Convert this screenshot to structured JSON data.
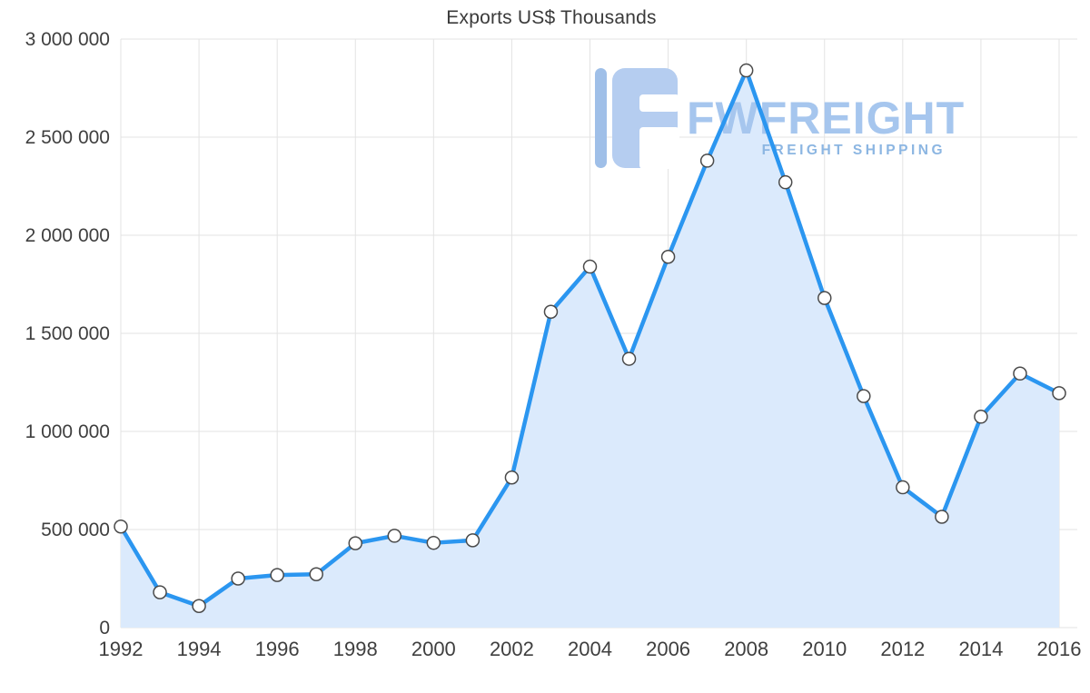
{
  "title": "Exports US$ Thousands",
  "watermark": {
    "brand": "FWFREIGHT",
    "tagline": "FREIGHT SHIPPING"
  },
  "colors": {
    "line": "#2b96f0",
    "area": "#dbeafc",
    "marker_fill": "#ffffff",
    "marker_stroke": "#4a4a4a",
    "grid": "#e3e3e3",
    "axis_text": "#3f3f3f",
    "title_text": "#3a3a3a",
    "logo_bar": "#9fbfe8",
    "logo_block": "#b5cdf0",
    "brand_text": "#a6c6ee",
    "tagline_text": "#8cb6e2"
  },
  "chart_data": {
    "type": "line",
    "title": "Exports US$ Thousands",
    "x": [
      1992,
      1993,
      1994,
      1995,
      1996,
      1997,
      1998,
      1999,
      2000,
      2001,
      2002,
      2003,
      2004,
      2005,
      2006,
      2007,
      2008,
      2009,
      2010,
      2011,
      2012,
      2013,
      2014,
      2015,
      2016
    ],
    "values": [
      515000,
      180000,
      110000,
      250000,
      268000,
      272000,
      430000,
      468000,
      432000,
      445000,
      765000,
      1610000,
      1840000,
      1370000,
      1890000,
      2380000,
      2840000,
      2270000,
      1680000,
      1180000,
      715000,
      565000,
      1075000,
      1295000,
      1195000
    ],
    "ylim": [
      0,
      3000000
    ],
    "ytick_step": 500000,
    "xtick_step": 2,
    "xlabel": "",
    "ylabel": "",
    "grid": true,
    "area_fill": true,
    "legend": "none",
    "marker": "circle"
  }
}
